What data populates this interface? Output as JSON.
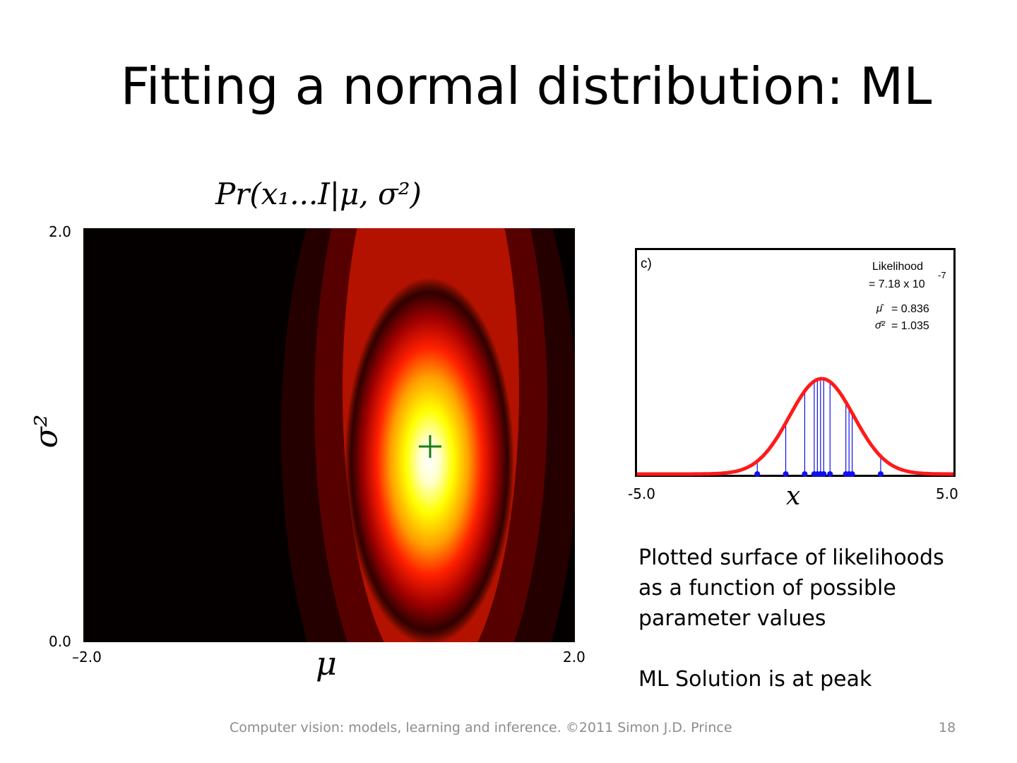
{
  "slide": {
    "title": "Fitting a normal distribution: ML",
    "footer": "Computer vision: models, learning and inference.  ©2011 Simon J.D. Prince",
    "page_number": "18"
  },
  "heatmap": {
    "title": "Pr(x₁...I|μ, σ²)",
    "y_tick_top": "2.0",
    "y_tick_bottom": "0.0",
    "x_tick_left": "–2.0",
    "x_tick_right": "2.0",
    "xlabel": "μ",
    "ylabel": "σ²",
    "peak_marker": "+"
  },
  "fit_panel": {
    "panel_label": "c)",
    "likelihood_label": "Likelihood",
    "likelihood_value": "= 7.18 x 10",
    "likelihood_exponent": "-7",
    "mu_hat_symbol": "μ̂",
    "mu_hat_value": "= 0.836",
    "sigma_hat_symbol": "σ̂²",
    "sigma_hat_value": "= 1.035",
    "x_tick_left": "-5.0",
    "x_tick_right": "5.0",
    "xlabel": "x"
  },
  "description": {
    "line1": "Plotted surface of likelihoods",
    "line2": "as a function of possible",
    "line3": "parameter values",
    "line4": "ML Solution is at peak"
  },
  "colors": {
    "curve": "#ff1a1a",
    "datapoints": "#1010ee",
    "marker": "#1a7a1a",
    "footer_text": "#8c8c8c"
  },
  "chart_data": [
    {
      "type": "heatmap",
      "xlabel": "μ",
      "ylabel": "σ²",
      "xlim": [
        -2.0,
        2.0
      ],
      "ylim": [
        0.0,
        2.0
      ],
      "peak": {
        "x": 0.836,
        "y": 1.035
      },
      "colormap": "hot"
    },
    {
      "type": "line",
      "xlabel": "x",
      "xlim": [
        -5.0,
        5.0
      ],
      "series": [
        {
          "name": "fitted normal",
          "function": "normal pdf",
          "mean": 0.836,
          "variance": 1.035
        }
      ],
      "data_points_x": [
        -1.2,
        -0.3,
        0.3,
        0.6,
        0.7,
        0.8,
        0.9,
        1.1,
        1.6,
        1.7,
        1.8,
        2.7
      ],
      "likelihood": 7.18e-07
    }
  ]
}
